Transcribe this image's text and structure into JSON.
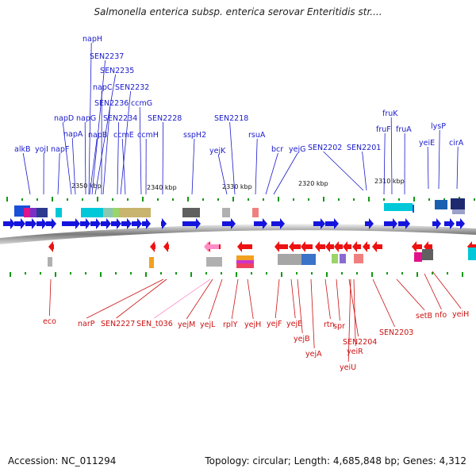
{
  "title": "Salmonella enterica subsp. enterica serovar Enteritidis str....",
  "accession_text": "Accession: NC_011294",
  "topology_text": "Topology: circular; Length: 4,685,848 bp; Genes: 4,312",
  "colors": {
    "forward_gene": "#1414dd",
    "reverse_gene": "#ee1111",
    "pseudo_gene": "#ff8cc6",
    "backbone": "#888888",
    "tick": "#119911"
  },
  "ticks": [
    {
      "label": "2350 kbp"
    },
    {
      "label": "2340 kbp"
    },
    {
      "label": "2330 kbp"
    },
    {
      "label": "2320 kbp"
    },
    {
      "label": "2310 kbp"
    }
  ],
  "top_labels": [
    {
      "text": "napH"
    },
    {
      "text": "SEN2237"
    },
    {
      "text": "SEN2235"
    },
    {
      "text": "napC"
    },
    {
      "text": "SEN2232"
    },
    {
      "text": "SEN2236"
    },
    {
      "text": "ccmG"
    },
    {
      "text": "napD"
    },
    {
      "text": "napG"
    },
    {
      "text": "SEN2234"
    },
    {
      "text": "SEN2228"
    },
    {
      "text": "SEN2218"
    },
    {
      "text": "fruK"
    },
    {
      "text": "napA"
    },
    {
      "text": "napB"
    },
    {
      "text": "ccmE"
    },
    {
      "text": "ccmH"
    },
    {
      "text": "sspH2"
    },
    {
      "text": "rsuA"
    },
    {
      "text": "fruF"
    },
    {
      "text": "fruA"
    },
    {
      "text": "lysP"
    },
    {
      "text": "alkB"
    },
    {
      "text": "yojI"
    },
    {
      "text": "napF"
    },
    {
      "text": "yejK"
    },
    {
      "text": "bcr"
    },
    {
      "text": "yejG"
    },
    {
      "text": "SEN2202"
    },
    {
      "text": "SEN2201"
    },
    {
      "text": "yeiE"
    },
    {
      "text": "cirA"
    }
  ],
  "bottom_labels": [
    {
      "text": "eco"
    },
    {
      "text": "narP"
    },
    {
      "text": "SEN2227"
    },
    {
      "text": "SEN_t036"
    },
    {
      "text": "yejM"
    },
    {
      "text": "yejL"
    },
    {
      "text": "rplY"
    },
    {
      "text": "yejH"
    },
    {
      "text": "yejF"
    },
    {
      "text": "yejE"
    },
    {
      "text": "yejB"
    },
    {
      "text": "yejA"
    },
    {
      "text": "rtn"
    },
    {
      "text": "spr"
    },
    {
      "text": "SEN2204"
    },
    {
      "text": "yeiR"
    },
    {
      "text": "yeiU"
    },
    {
      "text": "SEN2203"
    },
    {
      "text": "setB"
    },
    {
      "text": "nfo"
    },
    {
      "text": "yeiH"
    }
  ]
}
